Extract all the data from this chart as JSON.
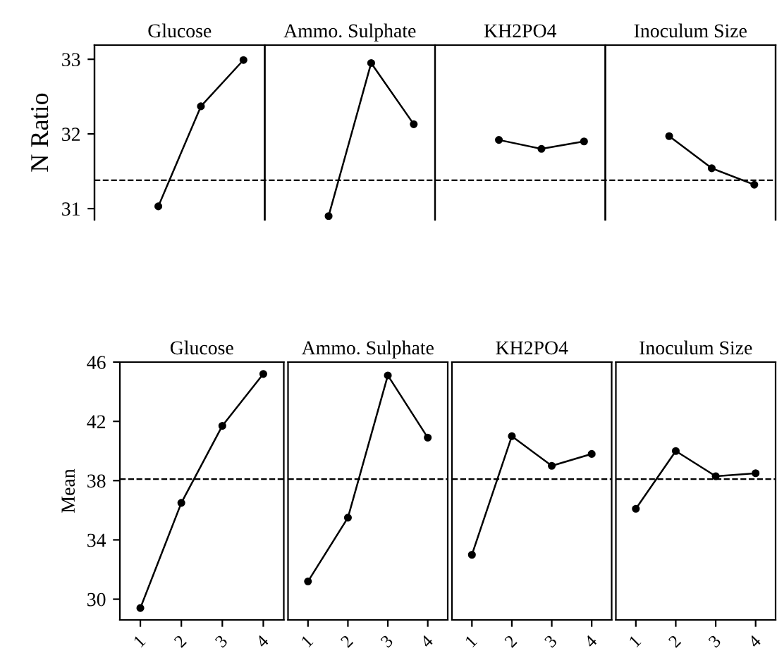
{
  "chart_data": [
    {
      "type": "line",
      "ylabel": "N Ratio",
      "annotations": [
        "Glucose",
        "Ammo. Sulphate",
        "KH2PO4",
        "Inoculum Size"
      ],
      "categories": [
        null,
        null,
        null,
        null,
        null,
        null,
        null,
        null,
        null,
        null,
        null,
        null,
        null,
        null,
        null,
        null
      ],
      "series": [
        {
          "color": "#000000",
          "values": [
            null,
            31.03,
            32.37,
            32.99,
            null,
            null,
            null,
            null,
            null,
            null,
            null,
            null,
            null,
            null,
            null,
            null
          ]
        },
        {
          "color": "#000000",
          "values": [
            null,
            null,
            null,
            null,
            null,
            30.9,
            32.95,
            32.13,
            null,
            null,
            null,
            null,
            null,
            null,
            null,
            null
          ]
        },
        {
          "color": "#000000",
          "values": [
            null,
            null,
            null,
            null,
            null,
            null,
            null,
            null,
            null,
            31.92,
            31.8,
            31.9,
            null,
            null,
            null,
            null
          ]
        },
        {
          "color": "#000000",
          "values": [
            null,
            null,
            null,
            null,
            null,
            null,
            null,
            null,
            null,
            null,
            null,
            null,
            null,
            31.97,
            31.54,
            31.32
          ]
        }
      ],
      "ylim": [
        30.85,
        33.19
      ],
      "yticks": [
        31,
        32,
        33
      ],
      "ref_lines": [
        {
          "axis": "y",
          "value": 31.38,
          "line_style": "dashed"
        }
      ],
      "marker": "circle",
      "tick_labels": "y"
    },
    {
      "type": "line",
      "title": "Glucose",
      "ylabel": "Mean",
      "categories": [
        "1",
        "2",
        "3",
        "4"
      ],
      "values": [
        29.4,
        36.5,
        41.7,
        45.2
      ],
      "color": "#000000",
      "ylim": [
        28.6,
        46
      ],
      "yticks": [
        30,
        34,
        38,
        42,
        46
      ],
      "ref_lines": [
        {
          "axis": "y",
          "value": 38.1,
          "line_style": "dashed"
        }
      ],
      "marker": "circle"
    },
    {
      "type": "line",
      "title": "Ammo. Sulphate",
      "categories": [
        "1",
        "2",
        "3",
        "4"
      ],
      "values": [
        31.2,
        35.5,
        45.1,
        40.9
      ],
      "color": "#000000",
      "ylim": [
        28.6,
        46
      ],
      "ref_lines": [
        {
          "axis": "y",
          "value": 38.1,
          "line_style": "dashed"
        }
      ],
      "marker": "circle",
      "tick_labels": "x"
    },
    {
      "type": "line",
      "title": "KH2PO4",
      "categories": [
        "1",
        "2",
        "3",
        "4"
      ],
      "values": [
        33.0,
        41.0,
        39.0,
        39.8
      ],
      "color": "#000000",
      "ylim": [
        28.6,
        46
      ],
      "ref_lines": [
        {
          "axis": "y",
          "value": 38.1,
          "line_style": "dashed"
        }
      ],
      "marker": "circle",
      "tick_labels": "x"
    },
    {
      "type": "line",
      "title": "Inoculum Size",
      "categories": [
        "1",
        "2",
        "3",
        "4"
      ],
      "values": [
        36.1,
        40.0,
        38.3,
        38.5
      ],
      "color": "#000000",
      "ylim": [
        28.6,
        46
      ],
      "ref_lines": [
        {
          "axis": "y",
          "value": 38.1,
          "line_style": "dashed"
        }
      ],
      "marker": "circle",
      "tick_labels": "x"
    }
  ]
}
